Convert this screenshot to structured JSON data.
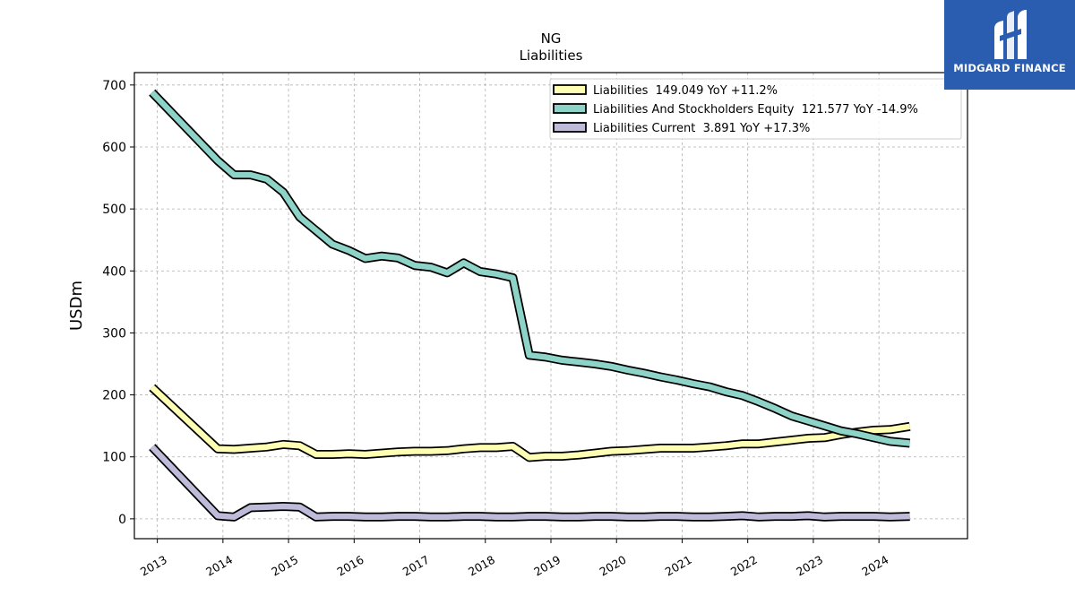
{
  "chart_data": {
    "type": "line",
    "title": "NG",
    "subtitle": "Liabilities",
    "ylabel": "USDm",
    "xlabel": "",
    "ylim": [
      -32,
      720
    ],
    "xlim": [
      2012.65,
      2025.35
    ],
    "yticks": [
      0,
      100,
      200,
      300,
      400,
      500,
      600,
      700
    ],
    "xticks": [
      "2013",
      "2014",
      "2015",
      "2016",
      "2017",
      "2018",
      "2019",
      "2020",
      "2021",
      "2022",
      "2023",
      "2024"
    ],
    "grid": true,
    "legend_position": "top-right",
    "series": [
      {
        "name": "Liabilities  149.049 YoY +11.2%",
        "color": "#ffffb3",
        "points": [
          [
            2012.92,
            212
          ],
          [
            2013.92,
            113
          ],
          [
            2014.17,
            112
          ],
          [
            2014.42,
            114
          ],
          [
            2014.67,
            116
          ],
          [
            2014.92,
            120
          ],
          [
            2015.17,
            118
          ],
          [
            2015.42,
            104
          ],
          [
            2015.67,
            104
          ],
          [
            2015.92,
            105
          ],
          [
            2016.17,
            104
          ],
          [
            2016.42,
            106
          ],
          [
            2016.67,
            108
          ],
          [
            2016.92,
            109
          ],
          [
            2017.17,
            109
          ],
          [
            2017.42,
            110
          ],
          [
            2017.67,
            113
          ],
          [
            2017.92,
            115
          ],
          [
            2018.17,
            115
          ],
          [
            2018.42,
            117
          ],
          [
            2018.67,
            99
          ],
          [
            2018.92,
            101
          ],
          [
            2019.17,
            101
          ],
          [
            2019.42,
            103
          ],
          [
            2019.67,
            106
          ],
          [
            2019.92,
            109
          ],
          [
            2020.17,
            110
          ],
          [
            2020.42,
            112
          ],
          [
            2020.67,
            114
          ],
          [
            2020.92,
            114
          ],
          [
            2021.17,
            114
          ],
          [
            2021.42,
            116
          ],
          [
            2021.67,
            118
          ],
          [
            2021.92,
            121
          ],
          [
            2022.17,
            121
          ],
          [
            2022.42,
            124
          ],
          [
            2022.67,
            127
          ],
          [
            2022.92,
            130
          ],
          [
            2023.17,
            131
          ],
          [
            2023.42,
            136
          ],
          [
            2023.67,
            140
          ],
          [
            2023.92,
            143
          ],
          [
            2024.17,
            144
          ],
          [
            2024.47,
            149
          ]
        ]
      },
      {
        "name": "Liabilities And Stockholders Equity  121.577 YoY -14.9%",
        "color": "#8dd3c7",
        "points": [
          [
            2012.92,
            688
          ],
          [
            2013.92,
            578
          ],
          [
            2014.17,
            555
          ],
          [
            2014.42,
            555
          ],
          [
            2014.67,
            548
          ],
          [
            2014.92,
            527
          ],
          [
            2015.17,
            487
          ],
          [
            2015.42,
            465
          ],
          [
            2015.67,
            443
          ],
          [
            2015.92,
            433
          ],
          [
            2016.17,
            420
          ],
          [
            2016.42,
            424
          ],
          [
            2016.67,
            421
          ],
          [
            2016.92,
            409
          ],
          [
            2017.17,
            406
          ],
          [
            2017.42,
            397
          ],
          [
            2017.67,
            413
          ],
          [
            2017.92,
            399
          ],
          [
            2018.17,
            395
          ],
          [
            2018.42,
            389
          ],
          [
            2018.67,
            264
          ],
          [
            2018.92,
            261
          ],
          [
            2019.17,
            256
          ],
          [
            2019.42,
            253
          ],
          [
            2019.67,
            250
          ],
          [
            2019.92,
            246
          ],
          [
            2020.17,
            240
          ],
          [
            2020.42,
            235
          ],
          [
            2020.67,
            229
          ],
          [
            2020.92,
            224
          ],
          [
            2021.17,
            218
          ],
          [
            2021.42,
            213
          ],
          [
            2021.67,
            205
          ],
          [
            2021.92,
            199
          ],
          [
            2022.17,
            189
          ],
          [
            2022.42,
            178
          ],
          [
            2022.67,
            166
          ],
          [
            2022.92,
            158
          ],
          [
            2023.17,
            150
          ],
          [
            2023.42,
            142
          ],
          [
            2023.67,
            137
          ],
          [
            2023.92,
            131
          ],
          [
            2024.17,
            125
          ],
          [
            2024.47,
            122
          ]
        ]
      },
      {
        "name": "Liabilities Current  3.891 YoY +17.3%",
        "color": "#bebada",
        "points": [
          [
            2012.92,
            116
          ],
          [
            2013.92,
            5
          ],
          [
            2014.17,
            3
          ],
          [
            2014.42,
            18
          ],
          [
            2014.67,
            19
          ],
          [
            2014.92,
            20
          ],
          [
            2015.17,
            19
          ],
          [
            2015.42,
            3
          ],
          [
            2015.67,
            4
          ],
          [
            2015.92,
            4
          ],
          [
            2016.17,
            3
          ],
          [
            2016.42,
            3
          ],
          [
            2016.67,
            4
          ],
          [
            2016.92,
            4
          ],
          [
            2017.17,
            3
          ],
          [
            2017.42,
            3
          ],
          [
            2017.67,
            4
          ],
          [
            2017.92,
            4
          ],
          [
            2018.17,
            3
          ],
          [
            2018.42,
            3
          ],
          [
            2018.67,
            4
          ],
          [
            2018.92,
            4
          ],
          [
            2019.17,
            3
          ],
          [
            2019.42,
            3
          ],
          [
            2019.67,
            4
          ],
          [
            2019.92,
            4
          ],
          [
            2020.17,
            3
          ],
          [
            2020.42,
            3
          ],
          [
            2020.67,
            4
          ],
          [
            2020.92,
            4
          ],
          [
            2021.17,
            3
          ],
          [
            2021.42,
            3
          ],
          [
            2021.67,
            4
          ],
          [
            2021.92,
            5
          ],
          [
            2022.17,
            3
          ],
          [
            2022.42,
            4
          ],
          [
            2022.67,
            4
          ],
          [
            2022.92,
            5
          ],
          [
            2023.17,
            3
          ],
          [
            2023.42,
            4
          ],
          [
            2023.67,
            4
          ],
          [
            2023.92,
            4
          ],
          [
            2024.17,
            3
          ],
          [
            2024.47,
            4
          ]
        ]
      }
    ]
  },
  "brand": {
    "name": "MIDGARD FINANCE",
    "background": "#2a5cb0"
  }
}
